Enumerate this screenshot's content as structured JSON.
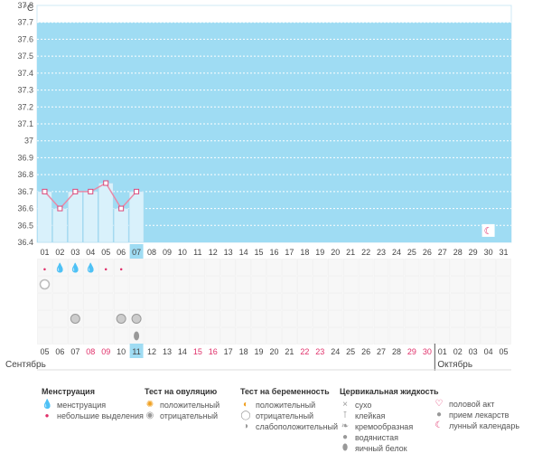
{
  "chart_data": {
    "type": "line",
    "ylabel": "°C",
    "ylim": [
      36.4,
      37.8
    ],
    "yticks": [
      "37.8",
      "37.7",
      "37.6",
      "37.5",
      "37.4",
      "37.3",
      "37.2",
      "37.1",
      "37",
      "36.9",
      "36.8",
      "36.7",
      "36.6",
      "36.5",
      "36.4"
    ],
    "cycle_days": [
      "01",
      "02",
      "03",
      "04",
      "05",
      "06",
      "07",
      "08",
      "09",
      "10",
      "11",
      "12",
      "13",
      "14",
      "15",
      "16",
      "17",
      "18",
      "19",
      "20",
      "21",
      "22",
      "23",
      "24",
      "25",
      "26",
      "27",
      "28",
      "29",
      "30",
      "31"
    ],
    "current_day_index": 6,
    "temperature": [
      36.7,
      36.6,
      36.7,
      36.7,
      36.75,
      36.6,
      36.7
    ],
    "fill_above": 37.7,
    "background_color": "#9fdcf3",
    "grid": true,
    "moon_day": "30",
    "menstruation_days": [
      "01",
      "02",
      "03",
      "04",
      "05",
      "06"
    ],
    "menstruation_small_days": [
      "01",
      "05",
      "06"
    ],
    "pregnancy_test_negative_days": [
      "01"
    ],
    "ovulation_negative_days": [
      "03",
      "06",
      "07"
    ],
    "fluid_eggwhite_days": [
      "07"
    ],
    "dates": [
      {
        "label": "05",
        "red": false
      },
      {
        "label": "06",
        "red": false
      },
      {
        "label": "07",
        "red": false
      },
      {
        "label": "08",
        "red": true
      },
      {
        "label": "09",
        "red": true
      },
      {
        "label": "10",
        "red": false
      },
      {
        "label": "11",
        "red": false
      },
      {
        "label": "12",
        "red": false
      },
      {
        "label": "13",
        "red": false
      },
      {
        "label": "14",
        "red": false
      },
      {
        "label": "15",
        "red": true
      },
      {
        "label": "16",
        "red": true
      },
      {
        "label": "17",
        "red": false
      },
      {
        "label": "18",
        "red": false
      },
      {
        "label": "19",
        "red": false
      },
      {
        "label": "20",
        "red": false
      },
      {
        "label": "21",
        "red": false
      },
      {
        "label": "22",
        "red": true
      },
      {
        "label": "23",
        "red": true
      },
      {
        "label": "24",
        "red": false
      },
      {
        "label": "25",
        "red": false
      },
      {
        "label": "26",
        "red": false
      },
      {
        "label": "27",
        "red": false
      },
      {
        "label": "28",
        "red": false
      },
      {
        "label": "29",
        "red": true
      },
      {
        "label": "30",
        "red": true
      },
      {
        "label": "01",
        "red": false
      },
      {
        "label": "02",
        "red": false
      },
      {
        "label": "03",
        "red": false
      },
      {
        "label": "04",
        "red": false
      },
      {
        "label": "05",
        "red": false
      }
    ],
    "month_start": "Сентябрь",
    "month_next": "Октябрь",
    "month_next_index": 26
  },
  "legend": {
    "menstruation": {
      "title": "Менструация",
      "items": [
        {
          "icon": "drop-large-icon",
          "label": "менструация"
        },
        {
          "icon": "drop-small-icon",
          "label": "небольшие выделения"
        }
      ]
    },
    "ovulation": {
      "title": "Тест на овуляцию",
      "items": [
        {
          "icon": "sun-positive-icon",
          "label": "положительный"
        },
        {
          "icon": "circle-negative-icon",
          "label": "отрицательный"
        }
      ]
    },
    "pregnancy": {
      "title": "Тест на беременность",
      "items": [
        {
          "icon": "positive-test-icon",
          "label": "положительный"
        },
        {
          "icon": "negative-test-icon",
          "label": "отрицательный"
        },
        {
          "icon": "weak-test-icon",
          "label": "слабоположительный"
        }
      ]
    },
    "fluid": {
      "title": "Цервикальная жидкость",
      "items": [
        {
          "icon": "cross-icon",
          "label": "сухо"
        },
        {
          "icon": "sticky-icon",
          "label": "клейкая"
        },
        {
          "icon": "creamy-icon",
          "label": "кремообразная"
        },
        {
          "icon": "watery-icon",
          "label": "водянистая"
        },
        {
          "icon": "eggwhite-icon",
          "label": "яичный белок"
        }
      ]
    },
    "other": {
      "items": [
        {
          "icon": "heart-icon",
          "label": "половой акт"
        },
        {
          "icon": "pill-icon",
          "label": "прием лекарств"
        },
        {
          "icon": "moon-icon",
          "label": "лунный календарь"
        }
      ]
    }
  }
}
